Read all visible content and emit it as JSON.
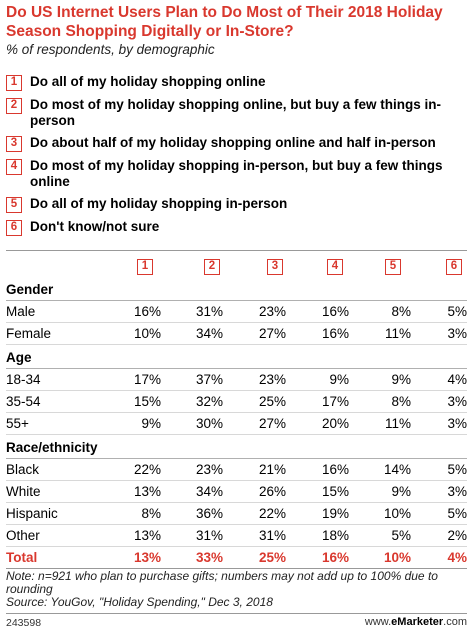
{
  "header": {
    "title": "Do US Internet Users Plan to Do Most of Their 2018 Holiday Season Shopping Digitally or In-Store?",
    "subtitle": "% of respondents, by demographic"
  },
  "legend": [
    {
      "num": "1",
      "label": "Do all of my holiday shopping online"
    },
    {
      "num": "2",
      "label": "Do most of my holiday shopping online, but buy a few things in-person"
    },
    {
      "num": "3",
      "label": "Do about half of my holiday shopping online and half in-person"
    },
    {
      "num": "4",
      "label": "Do most of my holiday shopping in-person, but buy a few things online"
    },
    {
      "num": "5",
      "label": "Do all of my holiday shopping in-person"
    },
    {
      "num": "6",
      "label": "Don't know/not sure"
    }
  ],
  "chart_data": {
    "type": "table",
    "columns": [
      "1",
      "2",
      "3",
      "4",
      "5",
      "6"
    ],
    "groups": [
      {
        "name": "Gender",
        "rows": [
          {
            "label": "Male",
            "values": [
              "16%",
              "31%",
              "23%",
              "16%",
              "8%",
              "5%"
            ]
          },
          {
            "label": "Female",
            "values": [
              "10%",
              "34%",
              "27%",
              "16%",
              "11%",
              "3%"
            ]
          }
        ]
      },
      {
        "name": "Age",
        "rows": [
          {
            "label": "18-34",
            "values": [
              "17%",
              "37%",
              "23%",
              "9%",
              "9%",
              "4%"
            ]
          },
          {
            "label": "35-54",
            "values": [
              "15%",
              "32%",
              "25%",
              "17%",
              "8%",
              "3%"
            ]
          },
          {
            "label": "55+",
            "values": [
              "9%",
              "30%",
              "27%",
              "20%",
              "11%",
              "3%"
            ]
          }
        ]
      },
      {
        "name": "Race/ethnicity",
        "rows": [
          {
            "label": "Black",
            "values": [
              "22%",
              "23%",
              "21%",
              "16%",
              "14%",
              "5%"
            ]
          },
          {
            "label": "White",
            "values": [
              "13%",
              "34%",
              "26%",
              "15%",
              "9%",
              "3%"
            ]
          },
          {
            "label": "Hispanic",
            "values": [
              "8%",
              "36%",
              "22%",
              "19%",
              "10%",
              "5%"
            ]
          },
          {
            "label": "Other",
            "values": [
              "13%",
              "31%",
              "31%",
              "18%",
              "5%",
              "2%"
            ]
          }
        ]
      }
    ],
    "total": {
      "label": "Total",
      "values": [
        "13%",
        "33%",
        "25%",
        "16%",
        "10%",
        "4%"
      ]
    }
  },
  "footer": {
    "note": "Note: n=921 who plan to purchase gifts; numbers may not add up to 100% due to rounding",
    "source": "Source: YouGov, \"Holiday Spending,\" Dec 3, 2018",
    "code": "243598",
    "brand_prefix": "www.",
    "brand_name": "eMarketer",
    "brand_suffix": ".com"
  },
  "colors": {
    "accent": "#d9382e"
  }
}
